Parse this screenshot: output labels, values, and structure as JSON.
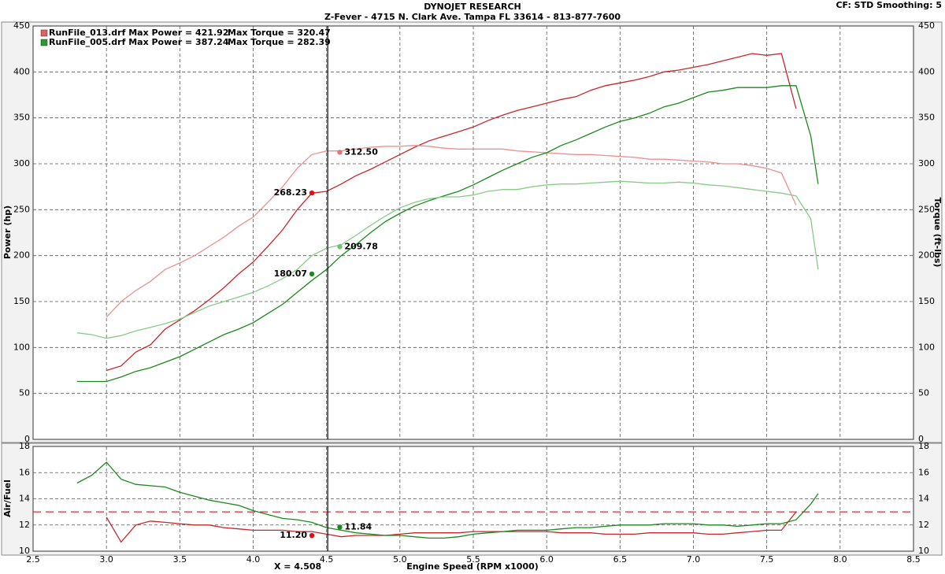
{
  "header": {
    "title": "DYNOJET RESEARCH",
    "subtitle": "Z-Fever - 4715 N. Clark Ave.   Tampa FL 33614 - 813-877-7600",
    "settings": "CF: STD  Smoothing: 5"
  },
  "chart_data": [
    {
      "type": "line",
      "ylabel": "Power (hp)",
      "y2label": "Torque (ft-lbs)",
      "grid": true,
      "xlim": [
        2.5,
        8.5
      ],
      "ylim": [
        0,
        450
      ],
      "yticks": [
        0,
        50,
        100,
        150,
        200,
        250,
        300,
        350,
        400,
        450
      ],
      "y2lim": [
        0,
        450
      ],
      "y2ticks": [
        0,
        50,
        100,
        150,
        200,
        250,
        300,
        350,
        400,
        450
      ],
      "legend": [
        {
          "text": "RunFile_013.drf Max Power = 421.92",
          "torque": "Max Torque = 320.47",
          "color": "#e06060"
        },
        {
          "text": "RunFile_005.drf Max Power = 387.24",
          "torque": "Max Torque = 282.39",
          "color": "#2a9a2a"
        }
      ],
      "x": [
        2.8,
        2.9,
        3.0,
        3.1,
        3.2,
        3.3,
        3.4,
        3.5,
        3.6,
        3.7,
        3.8,
        3.9,
        4.0,
        4.1,
        4.2,
        4.3,
        4.4,
        4.5,
        4.6,
        4.7,
        4.8,
        4.9,
        5.0,
        5.1,
        5.2,
        5.3,
        5.4,
        5.5,
        5.6,
        5.7,
        5.8,
        5.9,
        6.0,
        6.1,
        6.2,
        6.3,
        6.4,
        6.5,
        6.6,
        6.7,
        6.8,
        6.9,
        7.0,
        7.1,
        7.2,
        7.3,
        7.4,
        7.5,
        7.6,
        7.7,
        7.8,
        7.85
      ],
      "series": [
        {
          "color": "#c8262a",
          "values": [
            null,
            null,
            75,
            80,
            95,
            103,
            120,
            130,
            140,
            152,
            165,
            180,
            193,
            210,
            228,
            250,
            268,
            270,
            278,
            287,
            294,
            302,
            310,
            318,
            325,
            330,
            335,
            340,
            347,
            353,
            358,
            362,
            366,
            370,
            373,
            380,
            385,
            388,
            391,
            395,
            400,
            402,
            405,
            408,
            412,
            416,
            420,
            418,
            420,
            360,
            null,
            null
          ]
        },
        {
          "color": "#ee9090",
          "axis": "y2",
          "values": [
            null,
            null,
            133,
            150,
            162,
            172,
            185,
            192,
            200,
            210,
            220,
            232,
            242,
            258,
            275,
            295,
            310,
            314,
            314,
            316,
            318,
            319,
            319,
            320,
            319,
            317,
            316,
            316,
            316,
            316,
            314,
            313,
            312,
            311,
            310,
            310,
            309,
            308,
            307,
            305,
            305,
            304,
            303,
            302,
            300,
            300,
            298,
            295,
            290,
            255,
            null,
            null
          ]
        },
        {
          "color": "#1a8a1a",
          "values": [
            63,
            63,
            63,
            68,
            74,
            78,
            84,
            90,
            98,
            106,
            114,
            120,
            127,
            137,
            147,
            160,
            173,
            185,
            200,
            212,
            225,
            237,
            246,
            254,
            260,
            265,
            270,
            277,
            285,
            293,
            300,
            307,
            312,
            320,
            326,
            333,
            340,
            346,
            350,
            355,
            362,
            366,
            372,
            378,
            380,
            383,
            383,
            383,
            385,
            385,
            330,
            278
          ]
        },
        {
          "color": "#86cc86",
          "axis": "y2",
          "values": [
            116,
            114,
            110,
            113,
            118,
            122,
            126,
            131,
            138,
            145,
            150,
            155,
            160,
            167,
            175,
            185,
            200,
            208,
            212,
            222,
            233,
            243,
            252,
            258,
            262,
            264,
            264,
            266,
            270,
            272,
            272,
            275,
            277,
            278,
            278,
            279,
            280,
            281,
            280,
            279,
            279,
            280,
            279,
            277,
            276,
            274,
            272,
            270,
            268,
            265,
            240,
            185
          ]
        }
      ],
      "annotations": [
        {
          "x": 4.59,
          "y": 312.5,
          "label": "312.50",
          "color": "#ee7070"
        },
        {
          "x": 4.4,
          "y": 268.23,
          "color": "#e01010"
        },
        {
          "x": 4.59,
          "y": 209.78,
          "color": "#70c070"
        },
        {
          "x": 4.4,
          "y": 180.07,
          "color": "#1a8a1a"
        }
      ]
    },
    {
      "type": "line",
      "ylabel": "Air/Fuel",
      "xlabel": "Engine Speed (RPM x1000)",
      "grid": true,
      "xlim": [
        2.5,
        8.5
      ],
      "xticks": [
        2.5,
        {
          "value": 3,
          "label": "3.0"
        },
        3.5,
        {
          "value": 4,
          "label": "4.0"
        },
        4.5,
        {
          "value": 5,
          "label": "5.0"
        },
        5.5,
        {
          "value": 6,
          "label": "6.0"
        },
        6.5,
        {
          "value": 7,
          "label": "7.0"
        },
        7.5,
        {
          "value": 8,
          "label": "8.0"
        },
        8.5
      ],
      "ylim": [
        10,
        18
      ],
      "yticks": [
        10,
        12,
        14,
        16,
        18
      ],
      "reference": 13,
      "reference_color": "#d03030",
      "cursor": 4.508,
      "cursor_label": "X = 4.508",
      "x": [
        2.8,
        2.9,
        3.0,
        3.1,
        3.2,
        3.3,
        3.4,
        3.5,
        3.6,
        3.7,
        3.8,
        3.9,
        4.0,
        4.1,
        4.2,
        4.3,
        4.4,
        4.5,
        4.6,
        4.7,
        4.8,
        4.9,
        5.0,
        5.1,
        5.2,
        5.3,
        5.4,
        5.5,
        5.6,
        5.7,
        5.8,
        5.9,
        6.0,
        6.1,
        6.2,
        6.3,
        6.4,
        6.5,
        6.6,
        6.7,
        6.8,
        6.9,
        7.0,
        7.1,
        7.2,
        7.3,
        7.4,
        7.5,
        7.6,
        7.7,
        7.8,
        7.85
      ],
      "series": [
        {
          "color": "#c8262a",
          "values": [
            null,
            null,
            12.6,
            10.7,
            12.0,
            12.3,
            12.2,
            12.1,
            12.0,
            12.0,
            11.8,
            11.7,
            11.6,
            11.6,
            11.6,
            11.5,
            11.5,
            11.3,
            11.1,
            11.2,
            11.2,
            11.2,
            11.3,
            11.4,
            11.4,
            11.4,
            11.4,
            11.5,
            11.5,
            11.5,
            11.5,
            11.5,
            11.5,
            11.4,
            11.4,
            11.4,
            11.3,
            11.3,
            11.3,
            11.4,
            11.4,
            11.4,
            11.4,
            11.3,
            11.3,
            11.4,
            11.5,
            11.6,
            11.6,
            13.0,
            null,
            null
          ]
        },
        {
          "color": "#1a8a1a",
          "values": [
            15.2,
            15.8,
            16.8,
            15.5,
            15.1,
            15.0,
            14.9,
            14.5,
            14.2,
            13.9,
            13.7,
            13.5,
            13.1,
            12.8,
            12.5,
            12.4,
            12.2,
            11.8,
            11.6,
            11.4,
            11.3,
            11.2,
            11.2,
            11.1,
            11.0,
            11.0,
            11.1,
            11.3,
            11.4,
            11.5,
            11.6,
            11.6,
            11.6,
            11.7,
            11.8,
            11.8,
            11.9,
            12.0,
            12.0,
            12.0,
            12.1,
            12.1,
            12.1,
            12.0,
            12.0,
            11.9,
            12.0,
            12.1,
            12.1,
            12.4,
            13.6,
            14.4
          ]
        }
      ],
      "annotations": [
        {
          "x": 4.59,
          "y": 11.84,
          "color": "#1a8a1a"
        },
        {
          "x": 4.4,
          "y": 11.2,
          "label": "11.20",
          "color": "#e01010"
        }
      ]
    }
  ]
}
